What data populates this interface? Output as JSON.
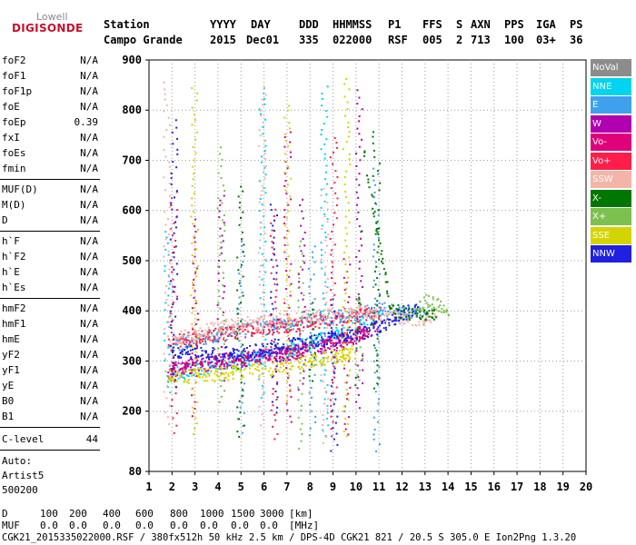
{
  "logo": {
    "top": "Lowell",
    "main": "DIGISONDE"
  },
  "header": {
    "labels": [
      "Station",
      "YYYY",
      "DAY",
      "DDD",
      "HHMMSS",
      "P1",
      "FFS",
      "S",
      "AXN",
      "PPS",
      "IGA",
      "PS"
    ],
    "values": [
      "Campo Grande",
      "2015",
      "Dec01",
      "335",
      "022000",
      "RSF",
      "005",
      "2",
      "713",
      "100",
      "03+",
      "36"
    ]
  },
  "params": {
    "group1": [
      {
        "label": "foF2",
        "value": "N/A"
      },
      {
        "label": "foF1",
        "value": "N/A"
      },
      {
        "label": "foF1p",
        "value": "N/A"
      },
      {
        "label": "foE",
        "value": "N/A"
      },
      {
        "label": "foEp",
        "value": "0.39"
      },
      {
        "label": "fxI",
        "value": "N/A"
      },
      {
        "label": "foEs",
        "value": "N/A"
      },
      {
        "label": "fmin",
        "value": "N/A"
      }
    ],
    "group2": [
      {
        "label": "MUF(D)",
        "value": "N/A"
      },
      {
        "label": "M(D)",
        "value": "N/A"
      },
      {
        "label": "D",
        "value": "N/A"
      }
    ],
    "group3": [
      {
        "label": "h`F",
        "value": "N/A"
      },
      {
        "label": "h`F2",
        "value": "N/A"
      },
      {
        "label": "h`E",
        "value": "N/A"
      },
      {
        "label": "h`Es",
        "value": "N/A"
      }
    ],
    "group4": [
      {
        "label": "hmF2",
        "value": "N/A"
      },
      {
        "label": "hmF1",
        "value": "N/A"
      },
      {
        "label": "hmE",
        "value": "N/A"
      },
      {
        "label": "yF2",
        "value": "N/A"
      },
      {
        "label": "yF1",
        "value": "N/A"
      },
      {
        "label": "yE",
        "value": "N/A"
      },
      {
        "label": "B0",
        "value": "N/A"
      },
      {
        "label": "B1",
        "value": "N/A"
      }
    ],
    "clevel": {
      "label": "C-level",
      "value": "44"
    },
    "auto": [
      "Auto:",
      "Artist5",
      "500200"
    ]
  },
  "legend": [
    {
      "label": "NoVal",
      "color": "#8c8c8c"
    },
    {
      "label": "NNE",
      "color": "#00d4f0"
    },
    {
      "label": "E",
      "color": "#3fa0ee"
    },
    {
      "label": "W",
      "color": "#b000b0"
    },
    {
      "label": "Vo-",
      "color": "#e0007a"
    },
    {
      "label": "Vo+",
      "color": "#ff1e4a"
    },
    {
      "label": "SSW",
      "color": "#f4b4a8"
    },
    {
      "label": "X-",
      "color": "#007800"
    },
    {
      "label": "X+",
      "color": "#7cc050"
    },
    {
      "label": "SSE",
      "color": "#d4d400"
    },
    {
      "label": "NNW",
      "color": "#2020e0"
    }
  ],
  "footer": {
    "d_label": "D",
    "d_values": [
      "100",
      "200",
      "400",
      "600",
      "800",
      "1000",
      "1500",
      "3000",
      "[km]"
    ],
    "muf_label": "MUF",
    "muf_values": [
      "0.0",
      "0.0",
      "0.0",
      "0.0",
      "0.0",
      "0.0",
      "0.0",
      "0.0",
      "[MHz]"
    ],
    "info": "CGK21_2015335022000.RSF / 380fx512h 50 kHz 2.5 km / DPS-4D CGK21 821 / 20.5 S 305.0 E Ion2Png 1.3.20"
  },
  "chart_data": {
    "type": "scatter",
    "title": "",
    "xlabel": "",
    "ylabel": "",
    "xlim": [
      1,
      20
    ],
    "ylim": [
      80,
      900
    ],
    "xticks": [
      1,
      2,
      3,
      4,
      5,
      6,
      7,
      8,
      9,
      10,
      11,
      12,
      13,
      14,
      15,
      16,
      17,
      18,
      19,
      20
    ],
    "yticks": [
      80,
      200,
      300,
      400,
      500,
      600,
      700,
      800,
      900
    ],
    "grid": true,
    "legend_position": "right",
    "series": [
      {
        "name": "NNE",
        "trace": [
          [
            1.8,
            270
          ],
          [
            2.5,
            280
          ],
          [
            3.5,
            290
          ],
          [
            4.5,
            300
          ],
          [
            5.5,
            305
          ],
          [
            6.5,
            315
          ],
          [
            7.5,
            330
          ],
          [
            8.5,
            345
          ],
          [
            9.5,
            360
          ],
          [
            10.5,
            385
          ],
          [
            11.0,
            400
          ]
        ]
      },
      {
        "name": "E",
        "trace": [
          [
            1.8,
            330
          ],
          [
            3.0,
            345
          ],
          [
            4.5,
            360
          ],
          [
            6.0,
            370
          ],
          [
            8.0,
            385
          ],
          [
            10.0,
            395
          ],
          [
            11.0,
            405
          ],
          [
            13.0,
            395
          ]
        ]
      },
      {
        "name": "W",
        "trace": [
          [
            1.8,
            280
          ],
          [
            3.0,
            290
          ],
          [
            4.5,
            300
          ],
          [
            6.0,
            310
          ],
          [
            8.0,
            325
          ],
          [
            9.5,
            340
          ],
          [
            10.5,
            360
          ],
          [
            11.0,
            375
          ]
        ]
      },
      {
        "name": "Vo-",
        "trace": [
          [
            1.8,
            285
          ],
          [
            3.5,
            300
          ],
          [
            5.5,
            310
          ],
          [
            7.5,
            320
          ],
          [
            9.5,
            345
          ],
          [
            10.5,
            365
          ]
        ]
      },
      {
        "name": "Vo+",
        "trace": [
          [
            1.8,
            340
          ],
          [
            3.5,
            350
          ],
          [
            5.5,
            365
          ],
          [
            7.5,
            375
          ],
          [
            9.5,
            385
          ],
          [
            11.0,
            400
          ]
        ]
      },
      {
        "name": "SSW",
        "trace": [
          [
            2.0,
            345
          ],
          [
            4.0,
            370
          ],
          [
            6.0,
            380
          ],
          [
            8.0,
            390
          ],
          [
            10.0,
            400
          ],
          [
            12.5,
            385
          ],
          [
            13.5,
            390
          ]
        ]
      },
      {
        "name": "X-",
        "trace": [
          [
            9.9,
            200
          ],
          [
            10.0,
            330
          ],
          [
            10.1,
            420
          ],
          [
            10.2,
            520
          ],
          [
            10.3,
            720
          ],
          [
            11.5,
            400
          ],
          [
            13.5,
            395
          ]
        ]
      },
      {
        "name": "X+",
        "trace": [
          [
            12.5,
            410
          ],
          [
            13.0,
            420
          ],
          [
            14.0,
            405
          ]
        ]
      },
      {
        "name": "SSE",
        "trace": [
          [
            1.8,
            270
          ],
          [
            4.0,
            275
          ],
          [
            6.0,
            285
          ],
          [
            8.0,
            300
          ],
          [
            9.5,
            315
          ],
          [
            10.0,
            320
          ]
        ]
      },
      {
        "name": "NNW",
        "trace": [
          [
            2.0,
            320
          ],
          [
            4.0,
            315
          ],
          [
            5.5,
            320
          ],
          [
            7.0,
            335
          ],
          [
            8.5,
            345
          ],
          [
            10.5,
            360
          ],
          [
            12.7,
            410
          ]
        ]
      }
    ]
  }
}
